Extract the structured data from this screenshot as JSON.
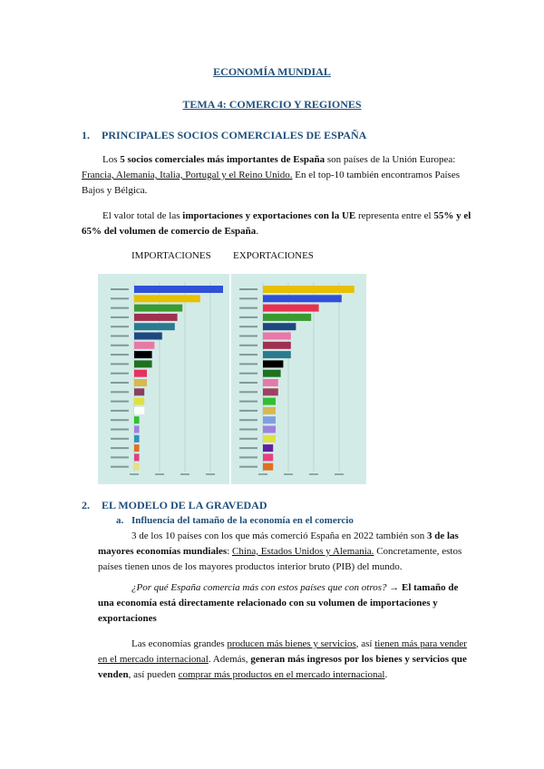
{
  "header": {
    "title": "ECONOMÍA MUNDIAL",
    "subtitle": "TEMA 4: COMERCIO Y REGIONES"
  },
  "section1": {
    "number": "1.",
    "heading": "PRINCIPALES SOCIOS COMERCIALES DE ESPAÑA",
    "paragraphs": [
      [
        {
          "t": "Los "
        },
        {
          "t": "5 socios comerciales más importantes de España",
          "b": true
        },
        {
          "t": " son países de la Unión Europea: "
        },
        {
          "t": "Francia, Alemania, Italia, Portugal y el Reino Unido.",
          "u": true
        },
        {
          "t": " En el top-10 también encontramos Países Bajos y Bélgica."
        }
      ],
      [
        {
          "t": "El valor total de las "
        },
        {
          "t": "importaciones y exportaciones con la UE",
          "b": true
        },
        {
          "t": " representa entre el "
        },
        {
          "t": "55% y el 65% del volumen de comercio de España",
          "b": true
        },
        {
          "t": "."
        }
      ]
    ],
    "charts": [
      {
        "type": "bar",
        "label": "IMPORTACIONES",
        "values": [
          35,
          26,
          19,
          17,
          16,
          11,
          8,
          7,
          7,
          5,
          5,
          4,
          4,
          4,
          2,
          2,
          2,
          2,
          2,
          2
        ],
        "colors": [
          "#3050d8",
          "#e8c000",
          "#3a9a30",
          "#a03050",
          "#2a7a90",
          "#1e4880",
          "#e878a8",
          "#000000",
          "#207020",
          "#e83060",
          "#d8b850",
          "#8a4060",
          "#e0e040",
          "#ffffff",
          "#30c030",
          "#a080e0",
          "#3090c0",
          "#e07020",
          "#e04080",
          "#e8e080"
        ]
      },
      {
        "type": "bar",
        "label": "EXPORTACIONES",
        "values": [
          36,
          31,
          22,
          19,
          13,
          11,
          11,
          11,
          8,
          7,
          6,
          6,
          5,
          5,
          5,
          5,
          5,
          4,
          4,
          4
        ],
        "colors": [
          "#e8c000",
          "#3050d8",
          "#e83050",
          "#3a9a30",
          "#1e4880",
          "#e878a8",
          "#a03050",
          "#2a7a90",
          "#000000",
          "#207020",
          "#e878a8",
          "#a04060",
          "#30c030",
          "#d8b850",
          "#80a0e0",
          "#a080e0",
          "#e0e040",
          "#6020a0",
          "#e84080",
          "#e07020"
        ]
      }
    ]
  },
  "section2": {
    "number": "2.",
    "heading": "EL MODELO DE LA GRAVEDAD",
    "sub": {
      "letter": "a.",
      "heading": "Influencia del tamaño de la economía en el comercio"
    },
    "paragraphs": [
      [
        {
          "t": "3 de los 10 países con los que más comerció España en 2022 también son "
        },
        {
          "t": "3 de las mayores economías mundiales",
          "b": true
        },
        {
          "t": ": "
        },
        {
          "t": "China, Estados Unidos y Alemania.",
          "u": true
        },
        {
          "t": " Concretamente, estos países tienen unos de los mayores productos interior bruto (PIB) del mundo."
        }
      ],
      [
        {
          "t": "¿Por qué España comercia más con estos países que con otros? ",
          "i": true
        },
        {
          "t": "→ "
        },
        {
          "t": "El tamaño de una economía está directamente relacionado con su volumen de importaciones y exportaciones",
          "b": true
        }
      ],
      [
        {
          "t": "Las economías grandes "
        },
        {
          "t": "producen más bienes y servicios",
          "u": true
        },
        {
          "t": ", así "
        },
        {
          "t": "tienen más para vender en el mercado internacional",
          "u": true
        },
        {
          "t": ". Además, "
        },
        {
          "t": "generan más ingresos por los bienes y servicios que venden",
          "b": true
        },
        {
          "t": ", así pueden "
        },
        {
          "t": "comprar más productos en el mercado internacional",
          "u": true
        },
        {
          "t": "."
        }
      ]
    ]
  }
}
